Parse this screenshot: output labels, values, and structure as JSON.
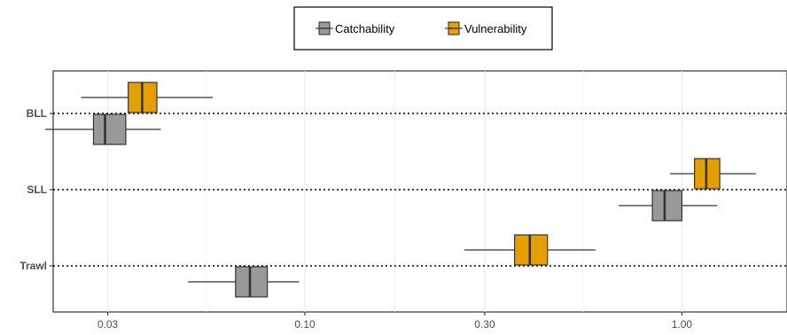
{
  "chart_data": {
    "type": "boxplot",
    "orientation": "horizontal",
    "x_scale": "log",
    "xlim": [
      0.0215,
      1.9
    ],
    "x_ticks": [
      0.03,
      0.1,
      0.3,
      1.0
    ],
    "x_tick_labels": [
      "0.03",
      "0.10",
      "0.30",
      "1.00"
    ],
    "categories": [
      "BLL",
      "SLL",
      "Trawl"
    ],
    "legend": {
      "position": "top-center",
      "entries": [
        {
          "label": "Catchability",
          "color": "#999999"
        },
        {
          "label": "Vulnerability",
          "color": "#e69f00"
        }
      ]
    },
    "grid": true,
    "reference_lines": "dotted line at each category",
    "series": [
      {
        "key": "vulnerability",
        "color": "#e69f00",
        "boxes": [
          {
            "category": "BLL",
            "whisker_low": 0.0255,
            "q1": 0.034,
            "median": 0.037,
            "q3": 0.0405,
            "whisker_high": 0.057
          },
          {
            "category": "SLL",
            "whisker_low": 0.93,
            "q1": 1.08,
            "median": 1.16,
            "q3": 1.26,
            "whisker_high": 1.57
          },
          {
            "category": "Trawl",
            "whisker_low": 0.265,
            "q1": 0.36,
            "median": 0.395,
            "q3": 0.44,
            "whisker_high": 0.59
          }
        ]
      },
      {
        "key": "catchability",
        "color": "#999999",
        "boxes": [
          {
            "category": "BLL",
            "whisker_low": 0.0205,
            "q1": 0.0275,
            "median": 0.0295,
            "q3": 0.0335,
            "whisker_high": 0.0415
          },
          {
            "category": "SLL",
            "whisker_low": 0.68,
            "q1": 0.835,
            "median": 0.9,
            "q3": 1.0,
            "whisker_high": 1.24
          },
          {
            "category": "Trawl",
            "whisker_low": 0.049,
            "q1": 0.0655,
            "median": 0.0715,
            "q3": 0.0795,
            "whisker_high": 0.0965
          }
        ]
      }
    ]
  }
}
